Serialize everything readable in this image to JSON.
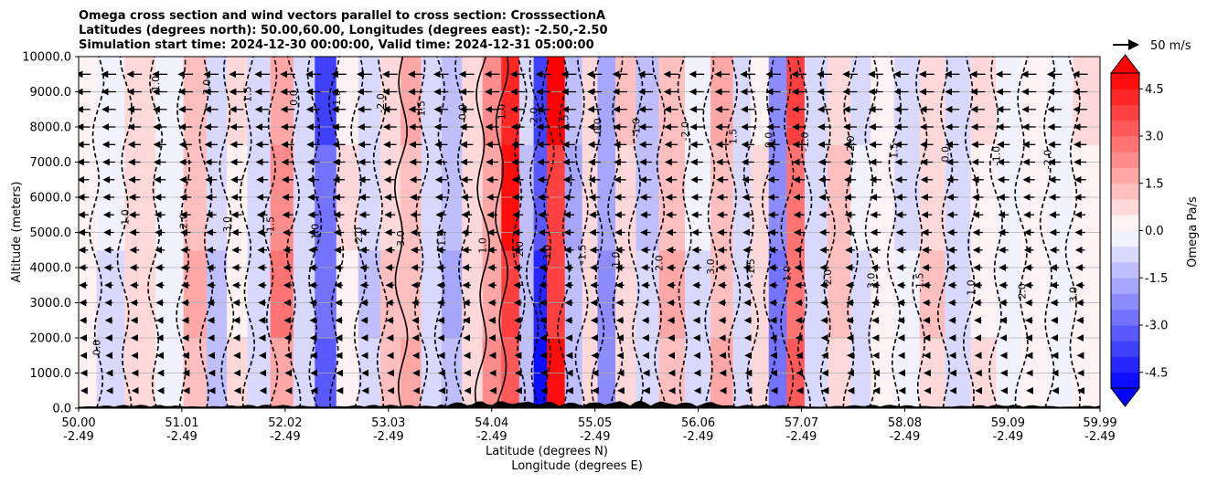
{
  "chart_data": {
    "type": "heatmap",
    "title_lines": [
      "Omega cross section and wind vectors parallel to cross section: CrosssectionA",
      "Latitudes (degrees north): 50.00,60.00, Longitudes (degrees east): -2.50,-2.50",
      "Simulation start time: 2024-12-30 00:00:00, Valid time: 2024-12-31 05:00:00"
    ],
    "xlabel_lat": "Latitude (degrees N)",
    "xlabel_lon": "Longitude (degrees E)",
    "ylabel": "Altitude (meters)",
    "x_range": [
      50.0,
      59.99
    ],
    "y_range": [
      0,
      10000
    ],
    "x_ticks": [
      {
        "lat": "50.00",
        "lon": "-2.49"
      },
      {
        "lat": "51.01",
        "lon": "-2.49"
      },
      {
        "lat": "52.02",
        "lon": "-2.49"
      },
      {
        "lat": "53.03",
        "lon": "-2.49"
      },
      {
        "lat": "54.04",
        "lon": "-2.49"
      },
      {
        "lat": "55.05",
        "lon": "-2.49"
      },
      {
        "lat": "56.06",
        "lon": "-2.49"
      },
      {
        "lat": "57.07",
        "lon": "-2.49"
      },
      {
        "lat": "58.08",
        "lon": "-2.49"
      },
      {
        "lat": "59.09",
        "lon": "-2.49"
      },
      {
        "lat": "59.99",
        "lon": "-2.49"
      }
    ],
    "y_ticks": [
      "0.0",
      "1000.0",
      "2000.0",
      "3000.0",
      "4000.0",
      "5000.0",
      "6000.0",
      "7000.0",
      "8000.0",
      "9000.0",
      "10000.0"
    ],
    "colorbar": {
      "label": "Omega Pa/s",
      "range": [
        -5.0,
        5.0
      ],
      "ticks": [
        "-4.5",
        "-3.0",
        "-1.5",
        "0.0",
        "1.5",
        "3.0",
        "4.5"
      ],
      "tick_values": [
        -4.5,
        -3.0,
        -1.5,
        0.0,
        1.5,
        3.0,
        4.5
      ],
      "extend": "both",
      "colormap": "bwr"
    },
    "quiver_key": {
      "label": "50 m/s",
      "speed": 50
    },
    "wind_direction": "towards decreasing latitude (southward arrows)",
    "omega_profile": [
      {
        "lat": 50.05,
        "omega": 0.4
      },
      {
        "lat": 50.3,
        "omega": -0.6
      },
      {
        "lat": 50.6,
        "omega": 0.8
      },
      {
        "lat": 50.9,
        "omega": -0.3
      },
      {
        "lat": 51.15,
        "omega": 1.5
      },
      {
        "lat": 51.35,
        "omega": -1.2
      },
      {
        "lat": 51.55,
        "omega": 0.6
      },
      {
        "lat": 51.75,
        "omega": -0.8
      },
      {
        "lat": 52.0,
        "omega": 2.6
      },
      {
        "lat": 52.2,
        "omega": -1.0
      },
      {
        "lat": 52.42,
        "omega": -3.6
      },
      {
        "lat": 52.62,
        "omega": 0.5
      },
      {
        "lat": 52.85,
        "omega": -1.1
      },
      {
        "lat": 53.05,
        "omega": 1.2
      },
      {
        "lat": 53.25,
        "omega": 1.9
      },
      {
        "lat": 53.45,
        "omega": -0.9
      },
      {
        "lat": 53.65,
        "omega": -1.6
      },
      {
        "lat": 53.85,
        "omega": 0.9
      },
      {
        "lat": 54.05,
        "omega": 2.3
      },
      {
        "lat": 54.22,
        "omega": 4.7
      },
      {
        "lat": 54.4,
        "omega": -1.4
      },
      {
        "lat": 54.5,
        "omega": -4.8
      },
      {
        "lat": 54.66,
        "omega": 5.0
      },
      {
        "lat": 54.85,
        "omega": -1.6
      },
      {
        "lat": 55.0,
        "omega": 0.8
      },
      {
        "lat": 55.15,
        "omega": -2.3
      },
      {
        "lat": 55.35,
        "omega": 1.1
      },
      {
        "lat": 55.55,
        "omega": -1.2
      },
      {
        "lat": 55.8,
        "omega": 1.5
      },
      {
        "lat": 56.06,
        "omega": -0.6
      },
      {
        "lat": 56.3,
        "omega": 1.8
      },
      {
        "lat": 56.5,
        "omega": -0.9
      },
      {
        "lat": 56.65,
        "omega": 0.7
      },
      {
        "lat": 56.85,
        "omega": -3.0
      },
      {
        "lat": 57.0,
        "omega": 3.8
      },
      {
        "lat": 57.2,
        "omega": -0.8
      },
      {
        "lat": 57.45,
        "omega": 1.2
      },
      {
        "lat": 57.65,
        "omega": -0.7
      },
      {
        "lat": 57.85,
        "omega": 0.3
      },
      {
        "lat": 58.1,
        "omega": -0.6
      },
      {
        "lat": 58.35,
        "omega": 1.0
      },
      {
        "lat": 58.6,
        "omega": -0.8
      },
      {
        "lat": 58.85,
        "omega": 0.6
      },
      {
        "lat": 59.1,
        "omega": -0.4
      },
      {
        "lat": 59.35,
        "omega": 0.4
      },
      {
        "lat": 59.6,
        "omega": -0.3
      },
      {
        "lat": 59.85,
        "omega": 0.5
      }
    ],
    "contour_label_values": [
      "0.0",
      "1.0",
      "-1.0",
      "2.0",
      "-2.0",
      "3.0",
      "1.5",
      "-1.5"
    ]
  }
}
